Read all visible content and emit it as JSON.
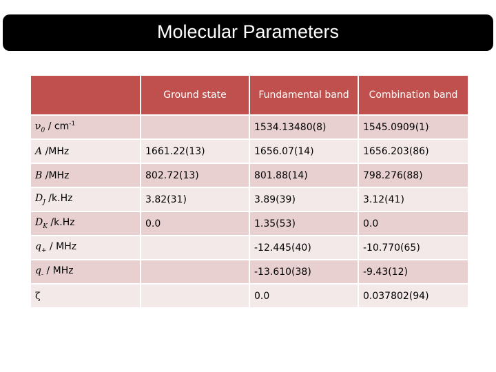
{
  "title": "Molecular Parameters",
  "headers": [
    "",
    "Ground state",
    "Fundamental band",
    "Combination band"
  ],
  "rows": [
    {
      "label_symbol": "ν",
      "label_sub": "0",
      "label_text": " / cm",
      "label_sup": "-1",
      "ground": "",
      "fundamental": "1534.13480(8)",
      "combination": "1545.0909(1)"
    },
    {
      "label_symbol": "A",
      "label_sub": "",
      "label_text": " /MHz",
      "label_sup": "",
      "ground": "1661.22(13)",
      "fundamental": "1656.07(14)",
      "combination": "1656.203(86)"
    },
    {
      "label_symbol": "B",
      "label_sub": "",
      "label_text": " /MHz",
      "label_sup": "",
      "ground": "802.72(13)",
      "fundamental": "801.88(14)",
      "combination": "798.276(88)"
    },
    {
      "label_symbol": "D",
      "label_sub": "J",
      "label_text": " /k.Hz",
      "label_sup": "",
      "ground": "3.82(31)",
      "fundamental": "3.89(39)",
      "combination": "3.12(41)"
    },
    {
      "label_symbol": "D",
      "label_sub": "K",
      "label_text": " /k.Hz",
      "label_sup": "",
      "ground": "0.0",
      "fundamental": "1.35(53)",
      "combination": "0.0"
    },
    {
      "label_symbol": "q",
      "label_sub": "+",
      "label_text": " / MHz",
      "label_sup": "",
      "ground": "",
      "fundamental": "-12.445(40)",
      "combination": "-10.770(65)"
    },
    {
      "label_symbol": "q",
      "label_sub": "-",
      "label_text": " / MHz",
      "label_sup": "",
      "ground": "",
      "fundamental": "-13.610(38)",
      "combination": "-9.43(12)"
    },
    {
      "label_symbol": "ζ",
      "label_sub": "",
      "label_text": "",
      "label_sup": "",
      "ground": "",
      "fundamental": "0.0",
      "combination": "0.037802(94)"
    }
  ],
  "colors": {
    "header": "#c0504d",
    "row_odd": "#e8d0d0",
    "row_even": "#f4e9e9",
    "title_bg": "#000000"
  }
}
